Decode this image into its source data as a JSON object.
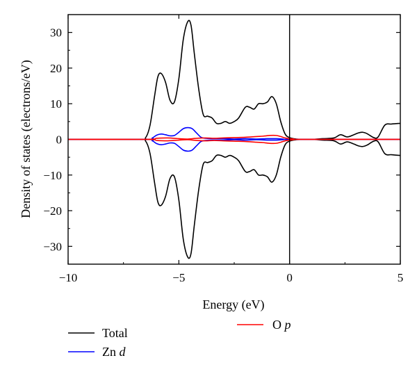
{
  "chart_data": {
    "type": "line",
    "title": "",
    "xlabel": "Energy (eV)",
    "ylabel": "Density of states (electrons/eV)",
    "xlim": [
      -10,
      5
    ],
    "ylim": [
      -35,
      35
    ],
    "xticks": [
      -10,
      -5,
      0,
      5
    ],
    "yticks": [
      -30,
      -20,
      -10,
      0,
      10,
      20,
      30
    ],
    "xtick_labels": [
      "−10",
      "−5",
      "0",
      "5"
    ],
    "ytick_labels": [
      "−30",
      "−20",
      "−10",
      "0",
      "10",
      "20",
      "30"
    ],
    "fermi_level": 0,
    "legend_position": "bottom",
    "spin_polarized": true,
    "series": [
      {
        "name": "Total",
        "color": "#000000",
        "x": [
          -10,
          -6.8,
          -6.5,
          -6.3,
          -6.1,
          -5.95,
          -5.8,
          -5.6,
          -5.4,
          -5.2,
          -5.0,
          -4.8,
          -4.6,
          -4.45,
          -4.3,
          -4.1,
          -3.9,
          -3.7,
          -3.5,
          -3.3,
          -3.1,
          -2.9,
          -2.7,
          -2.5,
          -2.3,
          -2.0,
          -1.8,
          -1.6,
          -1.4,
          -1.2,
          -1.0,
          -0.8,
          -0.6,
          -0.4,
          -0.2,
          0.0,
          0.3,
          0.6,
          1.0,
          1.5,
          2.0,
          2.3,
          2.6,
          2.9,
          3.1,
          3.3,
          3.5,
          3.8,
          4.0,
          4.3,
          4.6,
          5.0
        ],
        "y": [
          0,
          0,
          0.5,
          4,
          12,
          17.5,
          18.5,
          16,
          11,
          10.5,
          17,
          28,
          33,
          32,
          24,
          14,
          7,
          6.5,
          6,
          4.5,
          4.5,
          5,
          4.5,
          5,
          6,
          9,
          9,
          8.5,
          10,
          10,
          10.5,
          12,
          10,
          5,
          1.5,
          0.5,
          0.1,
          0,
          0,
          0.2,
          0.4,
          1.3,
          0.7,
          1.3,
          1.8,
          2.0,
          1.6,
          0.5,
          0.7,
          4.0,
          4.3,
          4.5
        ]
      },
      {
        "name": "Zn d",
        "color": "#0000ff",
        "x": [
          -10,
          -6.5,
          -6.2,
          -6.0,
          -5.8,
          -5.6,
          -5.4,
          -5.2,
          -5.0,
          -4.8,
          -4.6,
          -4.4,
          -4.2,
          -4.0,
          -3.8,
          -3.5,
          -3.0,
          -2.5,
          -2.0,
          -1.5,
          -1.0,
          -0.6,
          -0.3,
          0.0,
          5.0
        ],
        "y": [
          0,
          0,
          0.4,
          1.2,
          1.5,
          1.3,
          1.0,
          1.1,
          2.0,
          3.0,
          3.3,
          3.0,
          1.8,
          0.6,
          0.3,
          0.2,
          0.2,
          0.1,
          0.2,
          0.1,
          0.2,
          0.2,
          0.1,
          0,
          0
        ]
      },
      {
        "name": "O p",
        "color": "#ff0000",
        "x": [
          -10,
          -6.5,
          -6.0,
          -5.5,
          -5.0,
          -4.6,
          -4.2,
          -3.8,
          -3.4,
          -3.0,
          -2.5,
          -2.0,
          -1.5,
          -1.2,
          -0.9,
          -0.6,
          -0.4,
          -0.2,
          0.0,
          0.2,
          0.4,
          5.0
        ],
        "y": [
          0,
          0,
          0.3,
          0.4,
          0.2,
          0.1,
          0.3,
          0.4,
          0.3,
          0.4,
          0.5,
          0.6,
          0.8,
          0.9,
          1.1,
          1.1,
          0.8,
          0.4,
          0.2,
          0.1,
          0,
          0
        ]
      }
    ]
  },
  "legend": {
    "total_label": "Total",
    "zn_label": "Zn ",
    "zn_orbital": "d",
    "o_label": "O ",
    "o_orbital": "p"
  }
}
